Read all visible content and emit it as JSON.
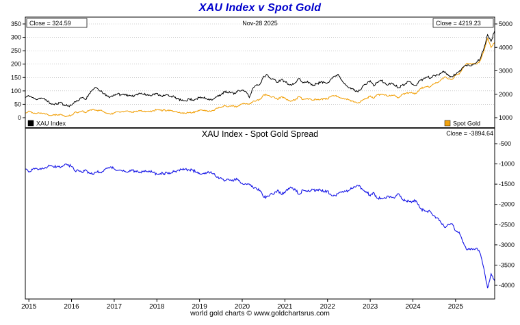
{
  "title": "XAU Index v Spot Gold",
  "title_color": "#0000cc",
  "date_label": "Nov-28 2025",
  "footer": "world gold charts © www.goldchartsrus.com",
  "top_panel": {
    "close_left": "Close = 324.59",
    "close_right": "Close = 4219.23",
    "legend": [
      {
        "label": "XAU Index",
        "color": "#000000"
      },
      {
        "label": "Spot Gold",
        "color": "#f2a20d"
      }
    ]
  },
  "bottom_panel": {
    "title": "XAU Index  -  Spot Gold Spread",
    "close": "Close = -3894.64"
  },
  "chart_data": [
    {
      "type": "line",
      "title": "XAU Index v Spot Gold",
      "x_start": 2014.9167,
      "x_step_years": 0.0833333,
      "x_ticks": [
        2015,
        2016,
        2017,
        2018,
        2019,
        2020,
        2021,
        2022,
        2023,
        2024,
        2025
      ],
      "last_date_label": "Nov-28 2025",
      "grid": "dotted-horizontal",
      "left_axis": {
        "label": "XAU Index",
        "min": 0,
        "max": 350,
        "ticks": [
          0,
          50,
          100,
          150,
          200,
          250,
          300,
          350
        ]
      },
      "right_axis": {
        "label": "Spot Gold",
        "min": 1000,
        "max": 5000,
        "ticks": [
          1000,
          2000,
          3000,
          4000,
          5000
        ]
      },
      "series": [
        {
          "name": "XAU Index",
          "axis": "left",
          "color": "#000000",
          "close": 324.59,
          "values": [
            75,
            82,
            75,
            68,
            73,
            72,
            65,
            52,
            50,
            51,
            58,
            45,
            44,
            47,
            60,
            65,
            75,
            68,
            90,
            105,
            112,
            100,
            90,
            80,
            78,
            85,
            90,
            85,
            88,
            82,
            80,
            85,
            92,
            88,
            85,
            84,
            87,
            90,
            83,
            82,
            85,
            80,
            76,
            70,
            64,
            63,
            70,
            66,
            70,
            75,
            74,
            71,
            68,
            70,
            80,
            85,
            98,
            92,
            95,
            90,
            102,
            104,
            98,
            75,
            110,
            122,
            125,
            155,
            160,
            145,
            142,
            132,
            143,
            136,
            125,
            123,
            132,
            147,
            130,
            133,
            130,
            119,
            128,
            132,
            132,
            130,
            145,
            155,
            162,
            140,
            126,
            111,
            108,
            98,
            102,
            120,
            125,
            138,
            118,
            132,
            140,
            130,
            122,
            130,
            120,
            112,
            122,
            128,
            135,
            125,
            120,
            140,
            145,
            152,
            148,
            158,
            160,
            168,
            172,
            158,
            152,
            162,
            172,
            188,
            196,
            194,
            200,
            208,
            222,
            260,
            310,
            285,
            324.59
          ]
        },
        {
          "name": "Spot Gold",
          "axis": "right",
          "color": "#f2a20d",
          "close": 4219.23,
          "values": [
            1200,
            1285,
            1215,
            1185,
            1200,
            1190,
            1170,
            1095,
            1135,
            1115,
            1140,
            1065,
            1060,
            1115,
            1235,
            1235,
            1290,
            1215,
            1320,
            1350,
            1310,
            1320,
            1270,
            1175,
            1150,
            1210,
            1250,
            1245,
            1265,
            1270,
            1240,
            1270,
            1310,
            1280,
            1270,
            1275,
            1300,
            1345,
            1320,
            1325,
            1315,
            1300,
            1250,
            1220,
            1200,
            1190,
            1215,
            1220,
            1280,
            1320,
            1315,
            1290,
            1280,
            1305,
            1410,
            1425,
            1525,
            1470,
            1510,
            1460,
            1515,
            1585,
            1585,
            1575,
            1690,
            1730,
            1780,
            1975,
            1965,
            1885,
            1880,
            1775,
            1895,
            1850,
            1730,
            1710,
            1770,
            1900,
            1770,
            1815,
            1815,
            1755,
            1785,
            1775,
            1820,
            1795,
            1910,
            1935,
            1895,
            1840,
            1805,
            1765,
            1710,
            1660,
            1635,
            1770,
            1815,
            1930,
            1825,
            1980,
            1990,
            1960,
            1920,
            1960,
            1940,
            1850,
            1995,
            2035,
            2065,
            2040,
            2045,
            2230,
            2285,
            2325,
            2330,
            2445,
            2500,
            2635,
            2745,
            2650,
            2625,
            2810,
            2855,
            3120,
            3300,
            3290,
            3300,
            3290,
            3450,
            3860,
            4380,
            4000,
            4219.23
          ]
        }
      ]
    },
    {
      "type": "line",
      "title": "XAU Index  -  Spot Gold Spread",
      "grid": "none",
      "right_axis": {
        "label": "Spread",
        "min": -4000,
        "max": -500,
        "ticks": [
          -500,
          -1000,
          -1500,
          -2000,
          -2500,
          -3000,
          -3500,
          -4000
        ]
      },
      "series": [
        {
          "name": "XAU Index - Spot Gold Spread",
          "axis": "right",
          "color": "#1414e6",
          "close": -3894.64,
          "values_derived_from": "XAU Index values minus Spot Gold values"
        }
      ]
    }
  ]
}
